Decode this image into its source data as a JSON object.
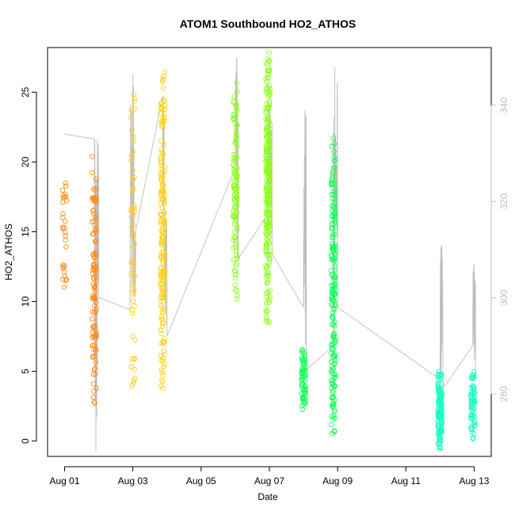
{
  "chart_data": {
    "type": "scatter",
    "title": "ATOM1 Southbound HO2_ATHOS",
    "xlabel": "Date",
    "ylabel": "HO2_ATHOS",
    "xlim": [
      "2018-07-31T12:00",
      "2018-08-13T12:00"
    ],
    "ylim": [
      -1.1,
      28.2
    ],
    "y2lim": [
      267,
      352
    ],
    "grid": false,
    "x_ticks": [
      {
        "date": "2018-08-01",
        "label": "Aug 01"
      },
      {
        "date": "2018-08-03",
        "label": "Aug 03"
      },
      {
        "date": "2018-08-05",
        "label": "Aug 05"
      },
      {
        "date": "2018-08-07",
        "label": "Aug 07"
      },
      {
        "date": "2018-08-09",
        "label": "Aug 09"
      },
      {
        "date": "2018-08-11",
        "label": "Aug 11"
      },
      {
        "date": "2018-08-13",
        "label": "Aug 13"
      }
    ],
    "y_ticks": [
      "0",
      "5",
      "10",
      "15",
      "20",
      "25"
    ],
    "y2_ticks": [
      "280",
      "300",
      "320",
      "340"
    ],
    "colors": {
      "title": "#000000",
      "axis": "#000000",
      "secondary_axis": "#bebebe",
      "secondary_line": "#bebebe"
    },
    "series": [
      {
        "date": "2018-08-01",
        "color": "#ff8c1a",
        "clusters": [
          {
            "hour": 0,
            "range": [
              9.7,
              19.4
            ],
            "n": 30
          },
          {
            "hour": 21,
            "range": [
              2.5,
              20.8
            ],
            "n": 110
          }
        ]
      },
      {
        "date": "2018-08-03",
        "color": "#ffd21a",
        "clusters": [
          {
            "hour": 0,
            "range": [
              3.5,
              25.3
            ],
            "n": 60
          },
          {
            "hour": 21,
            "range": [
              2.9,
              26.8
            ],
            "n": 180
          }
        ]
      },
      {
        "date": "2018-08-06",
        "color": "#8cff1a",
        "clusters": [
          {
            "hour": 0,
            "range": [
              9.9,
              25.8
            ],
            "n": 110
          },
          {
            "hour": 23,
            "range": [
              8.1,
              28.1
            ],
            "n": 230
          }
        ]
      },
      {
        "date": "2018-08-08",
        "color": "#1aff5a",
        "clusters": [
          {
            "hour": 0,
            "range": [
              2.1,
              6.8
            ],
            "n": 70
          },
          {
            "hour": 21,
            "range": [
              0.5,
              21.8
            ],
            "n": 200
          }
        ]
      },
      {
        "date": "2018-08-12",
        "color": "#1affc0",
        "clusters": [
          {
            "hour": 0,
            "range": [
              -0.6,
              5.0
            ],
            "n": 130
          },
          {
            "hour": 23,
            "range": [
              0.0,
              5.3
            ],
            "n": 60
          }
        ]
      }
    ],
    "secondary_series": {
      "name": "",
      "points": [
        [
          "2018-08-01T00:00",
          334.0
        ],
        [
          "2018-08-01T21:00",
          333.0
        ],
        [
          "2018-08-01T22:00",
          268.0
        ],
        [
          "2018-08-01T23:00",
          333.0
        ],
        [
          "2018-08-02T00:00",
          300.0
        ],
        [
          "2018-08-02T22:00",
          297.5
        ],
        [
          "2018-08-03T00:00",
          346.5
        ],
        [
          "2018-08-03T01:00",
          300.0
        ],
        [
          "2018-08-03T02:00",
          314.0
        ],
        [
          "2018-08-03T21:00",
          342.0
        ],
        [
          "2018-08-03T22:00",
          318.0
        ],
        [
          "2018-08-04T00:00",
          292.0
        ],
        [
          "2018-08-06T00:00",
          327.0
        ],
        [
          "2018-08-06T01:00",
          350.0
        ],
        [
          "2018-08-06T02:00",
          308.0
        ],
        [
          "2018-08-06T23:00",
          317.5
        ],
        [
          "2018-08-07T00:00",
          340.0
        ],
        [
          "2018-08-07T02:00",
          309.0
        ],
        [
          "2018-08-08T00:00",
          298.0
        ],
        [
          "2018-08-08T01:00",
          339.0
        ],
        [
          "2018-08-08T02:00",
          285.0
        ],
        [
          "2018-08-08T21:00",
          290.0
        ],
        [
          "2018-08-08T22:00",
          348.0
        ],
        [
          "2018-08-09T00:00",
          298.0
        ],
        [
          "2018-08-12T00:00",
          283.0
        ],
        [
          "2018-08-12T01:00",
          311.0
        ],
        [
          "2018-08-12T02:00",
          281.0
        ],
        [
          "2018-08-12T23:00",
          290.0
        ],
        [
          "2018-08-13T00:00",
          307.0
        ],
        [
          "2018-08-13T01:00",
          284.0
        ]
      ]
    }
  }
}
